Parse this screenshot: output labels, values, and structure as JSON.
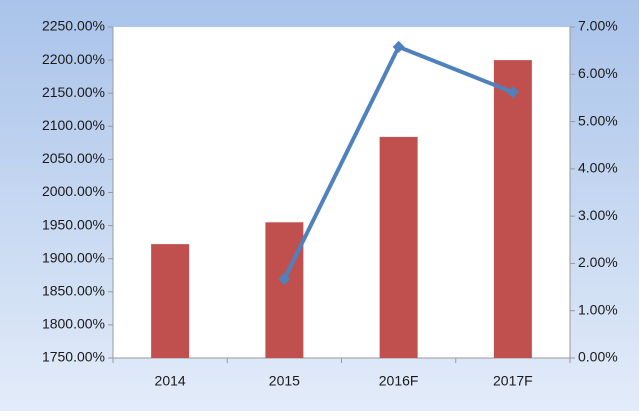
{
  "chart_data": {
    "type": "bar",
    "categories": [
      "2014",
      "2015",
      "2016F",
      "2017F"
    ],
    "series": [
      {
        "type": "bar",
        "color": "#c0504d",
        "values": [
          1922,
          1955,
          2084,
          2200
        ]
      },
      {
        "type": "line",
        "axis": "y2",
        "color": "#4f81bd",
        "values": [
          null,
          1.67,
          6.58,
          5.62
        ]
      }
    ],
    "ylim": [
      1750,
      2250
    ],
    "yticks": [
      {
        "value": 1750,
        "label": "1750.00%"
      },
      {
        "value": 1800,
        "label": "1800.00%"
      },
      {
        "value": 1850,
        "label": "1850.00%"
      },
      {
        "value": 1900,
        "label": "1900.00%"
      },
      {
        "value": 1950,
        "label": "1950.00%"
      },
      {
        "value": 2000,
        "label": "2000.00%"
      },
      {
        "value": 2050,
        "label": "2050.00%"
      },
      {
        "value": 2100,
        "label": "2100.00%"
      },
      {
        "value": 2150,
        "label": "2150.00%"
      },
      {
        "value": 2200,
        "label": "2200.00%"
      },
      {
        "value": 2250,
        "label": "2250.00%"
      }
    ],
    "y2lim": [
      0,
      7
    ],
    "y2ticks": [
      {
        "value": 0,
        "label": "0.00%"
      },
      {
        "value": 1,
        "label": "1.00%"
      },
      {
        "value": 2,
        "label": "2.00%"
      },
      {
        "value": 3,
        "label": "3.00%"
      },
      {
        "value": 4,
        "label": "4.00%"
      },
      {
        "value": 5,
        "label": "5.00%"
      },
      {
        "value": 6,
        "label": "6.00%"
      },
      {
        "value": 7,
        "label": "7.00%"
      }
    ],
    "grid": false
  }
}
